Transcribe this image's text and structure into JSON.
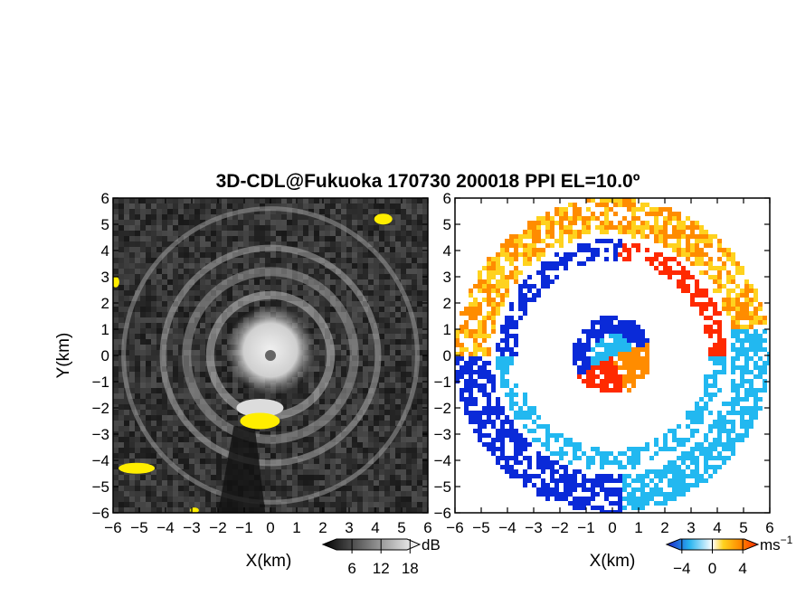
{
  "chart_data": [
    {
      "type": "heatmap",
      "title": "3D-CDL@Fukuoka 170730 200018 PPI EL=10.0º",
      "xlabel": "X(km)",
      "ylabel": "Y(km)",
      "xlim": [
        -6,
        6
      ],
      "ylim": [
        -6,
        6
      ],
      "xticks": [
        -6,
        -5,
        -4,
        -3,
        -2,
        -1,
        0,
        1,
        2,
        3,
        4,
        5,
        6
      ],
      "yticks": [
        -6,
        -5,
        -4,
        -3,
        -2,
        -1,
        0,
        1,
        2,
        3,
        4,
        5,
        6
      ],
      "colorbar": {
        "unit": "dB",
        "ticks": [
          6,
          12,
          18
        ],
        "range": [
          0,
          20
        ]
      },
      "colors": {
        "background": "#2a2a2a",
        "echo": "#ffffff",
        "highlight": "#ffee00"
      }
    },
    {
      "type": "heatmap",
      "xlabel": "X(km)",
      "xlim": [
        -6,
        6
      ],
      "ylim": [
        -6,
        6
      ],
      "xticks": [
        -6,
        -5,
        -4,
        -3,
        -2,
        -1,
        0,
        1,
        2,
        3,
        4,
        5,
        6
      ],
      "yticks": [
        -6,
        -5,
        -4,
        -3,
        -2,
        -1,
        0,
        1,
        2,
        3,
        4,
        5,
        6
      ],
      "colorbar": {
        "unit": "ms",
        "unit_exponent": "−1",
        "ticks": [
          "−4",
          "0",
          "4"
        ],
        "range": [
          -6,
          6
        ]
      },
      "colors": {
        "negative_strong": "#0a2ad8",
        "negative_weak": "#22b8f0",
        "zero": "#ffffff",
        "positive_weak": "#ffd21e",
        "positive_mid": "#ff8c00",
        "positive_strong": "#ff2a00"
      }
    }
  ]
}
